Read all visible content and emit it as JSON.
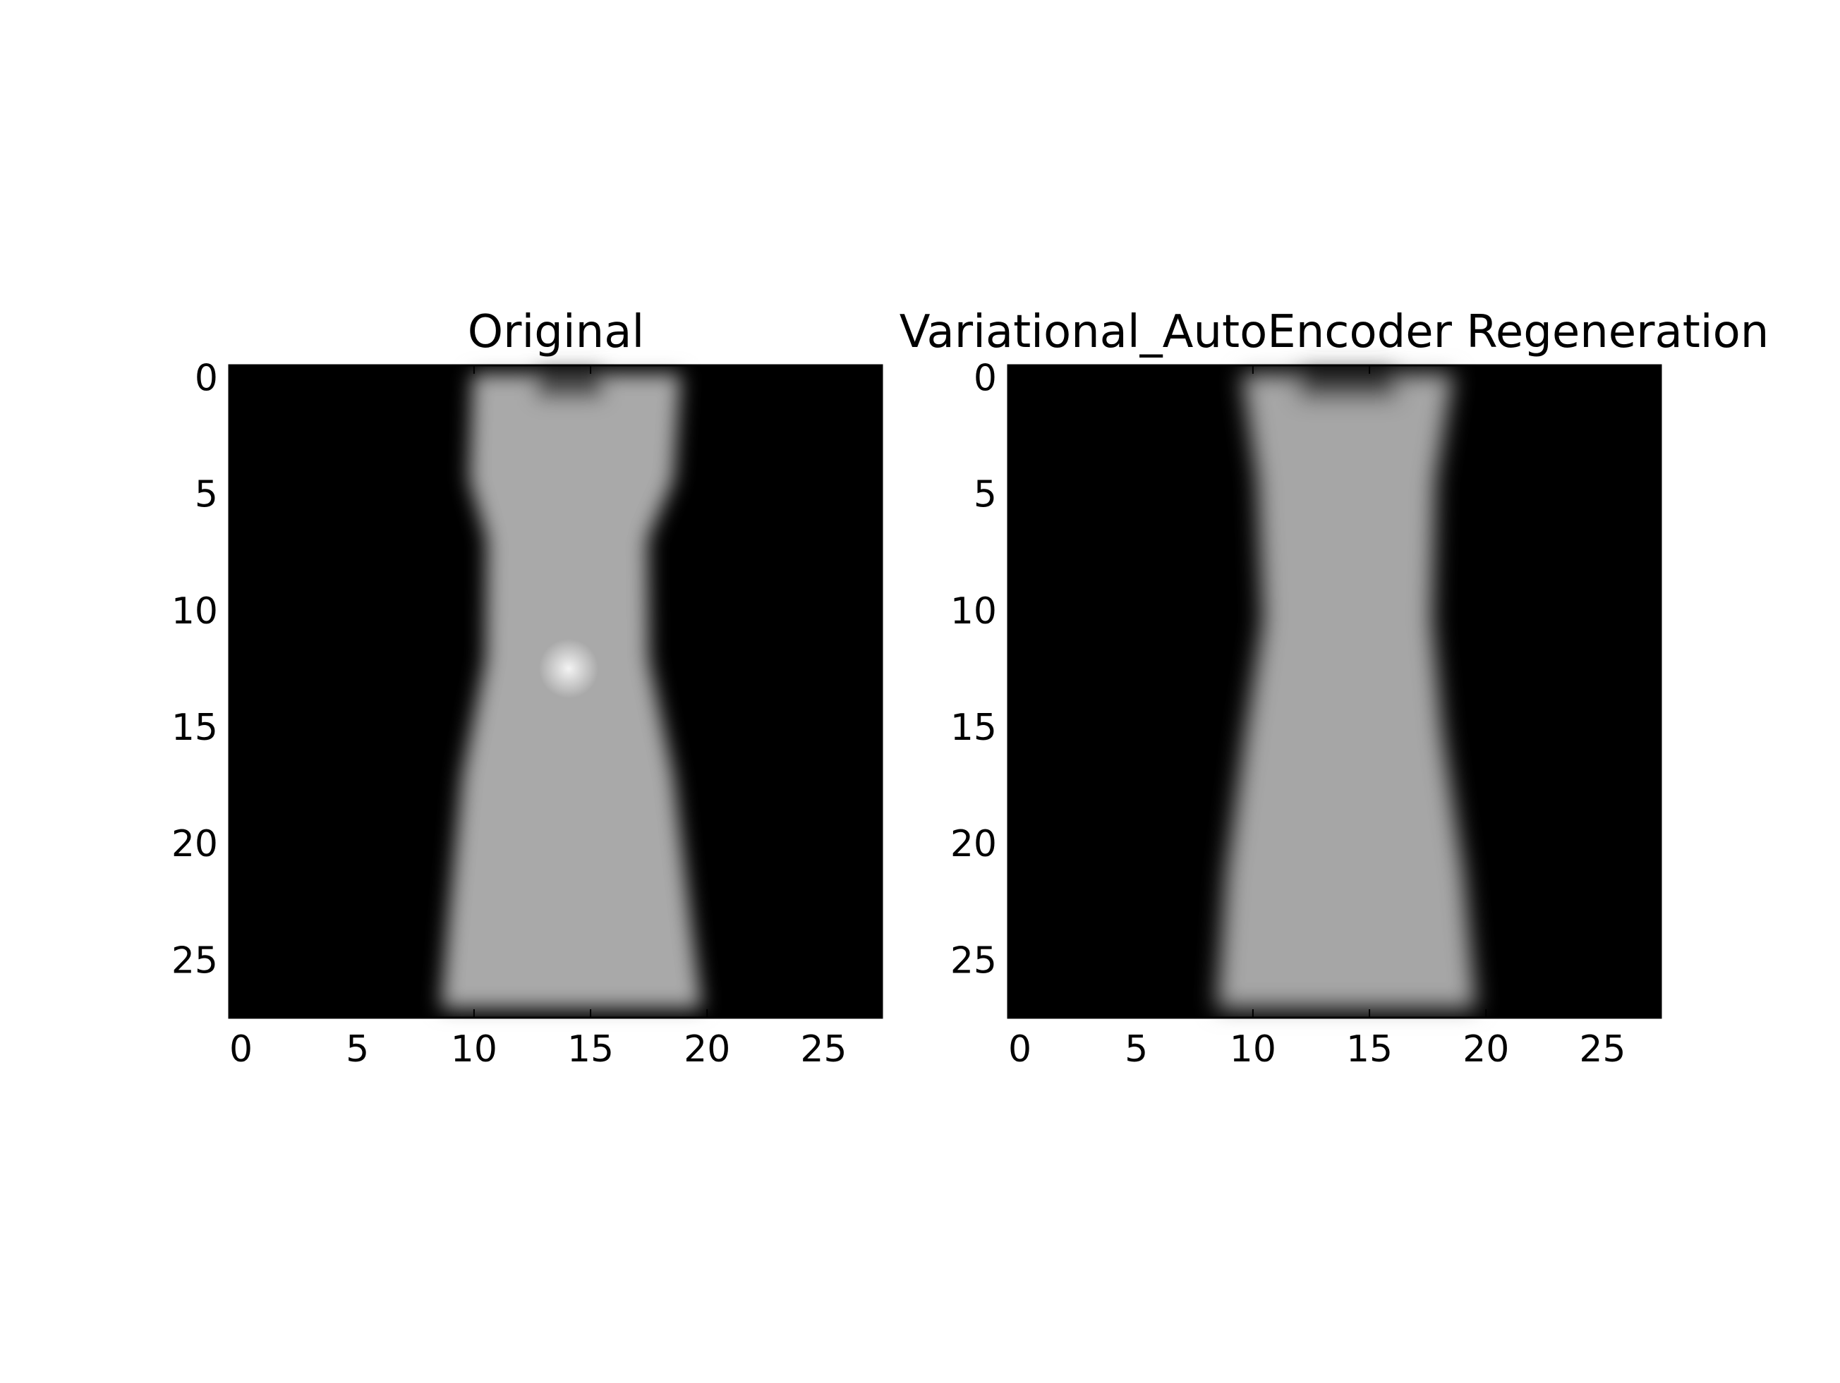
{
  "chart_data": [
    {
      "type": "heatmap",
      "title": "Original",
      "colormap": "gray",
      "image_shape": [
        28,
        28
      ],
      "xlim": [
        -0.5,
        27.5
      ],
      "ylim": [
        27.5,
        -0.5
      ],
      "xticks": [
        0,
        5,
        10,
        15,
        20,
        25
      ],
      "yticks": [
        0,
        5,
        10,
        15,
        20,
        25
      ],
      "xtick_labels": [
        "0",
        "5",
        "10",
        "15",
        "20",
        "25"
      ],
      "ytick_labels": [
        "0",
        "5",
        "10",
        "15",
        "20",
        "25"
      ],
      "xlabel": "",
      "ylabel": ""
    },
    {
      "type": "heatmap",
      "title": "Variational_AutoEncoder Regeneration",
      "colormap": "gray",
      "image_shape": [
        28,
        28
      ],
      "xlim": [
        -0.5,
        27.5
      ],
      "ylim": [
        27.5,
        -0.5
      ],
      "xticks": [
        0,
        5,
        10,
        15,
        20,
        25
      ],
      "yticks": [
        0,
        5,
        10,
        15,
        20,
        25
      ],
      "xtick_labels": [
        "0",
        "5",
        "10",
        "15",
        "20",
        "25"
      ],
      "ytick_labels": [
        "0",
        "5",
        "10",
        "15",
        "20",
        "25"
      ],
      "xlabel": "",
      "ylabel": ""
    }
  ]
}
